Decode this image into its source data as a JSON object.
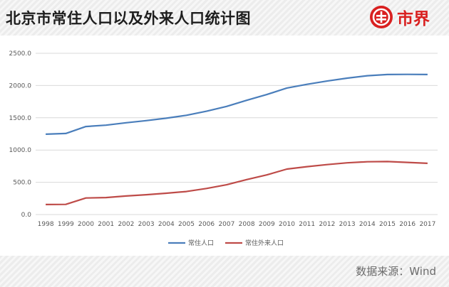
{
  "title": "北京市常住人口以及外来人口统计图",
  "brand": {
    "name": "市界",
    "logo_icon": "brand-logo-icon",
    "color": "#d92020"
  },
  "source": "数据来源：Wind",
  "chart_data": {
    "type": "line",
    "title": "北京市常住人口以及外来人口统计图",
    "xlabel": "",
    "ylabel": "",
    "categories": [
      "1998",
      "1999",
      "2000",
      "2001",
      "2002",
      "2003",
      "2004",
      "2005",
      "2006",
      "2007",
      "2008",
      "2009",
      "2010",
      "2011",
      "2012",
      "2013",
      "2014",
      "2015",
      "2016",
      "2017"
    ],
    "ylim": [
      0,
      2500
    ],
    "yticks": [
      "0.0",
      "500.0",
      "1000.0",
      "1500.0",
      "2000.0",
      "2500.0"
    ],
    "grid": true,
    "legend_position": "bottom",
    "series": [
      {
        "name": "常住人口",
        "color": "#4a7ebb",
        "values": [
          1246,
          1257,
          1364,
          1385,
          1423,
          1456,
          1493,
          1538,
          1601,
          1676,
          1771,
          1860,
          1962,
          2019,
          2069,
          2115,
          2152,
          2171,
          2173,
          2171
        ]
      },
      {
        "name": "常住外来人口",
        "color": "#be4b48",
        "values": [
          155,
          157,
          257,
          263,
          287,
          307,
          330,
          357,
          404,
          462,
          542,
          614,
          705,
          742,
          774,
          802,
          818,
          822,
          808,
          794
        ]
      }
    ]
  }
}
